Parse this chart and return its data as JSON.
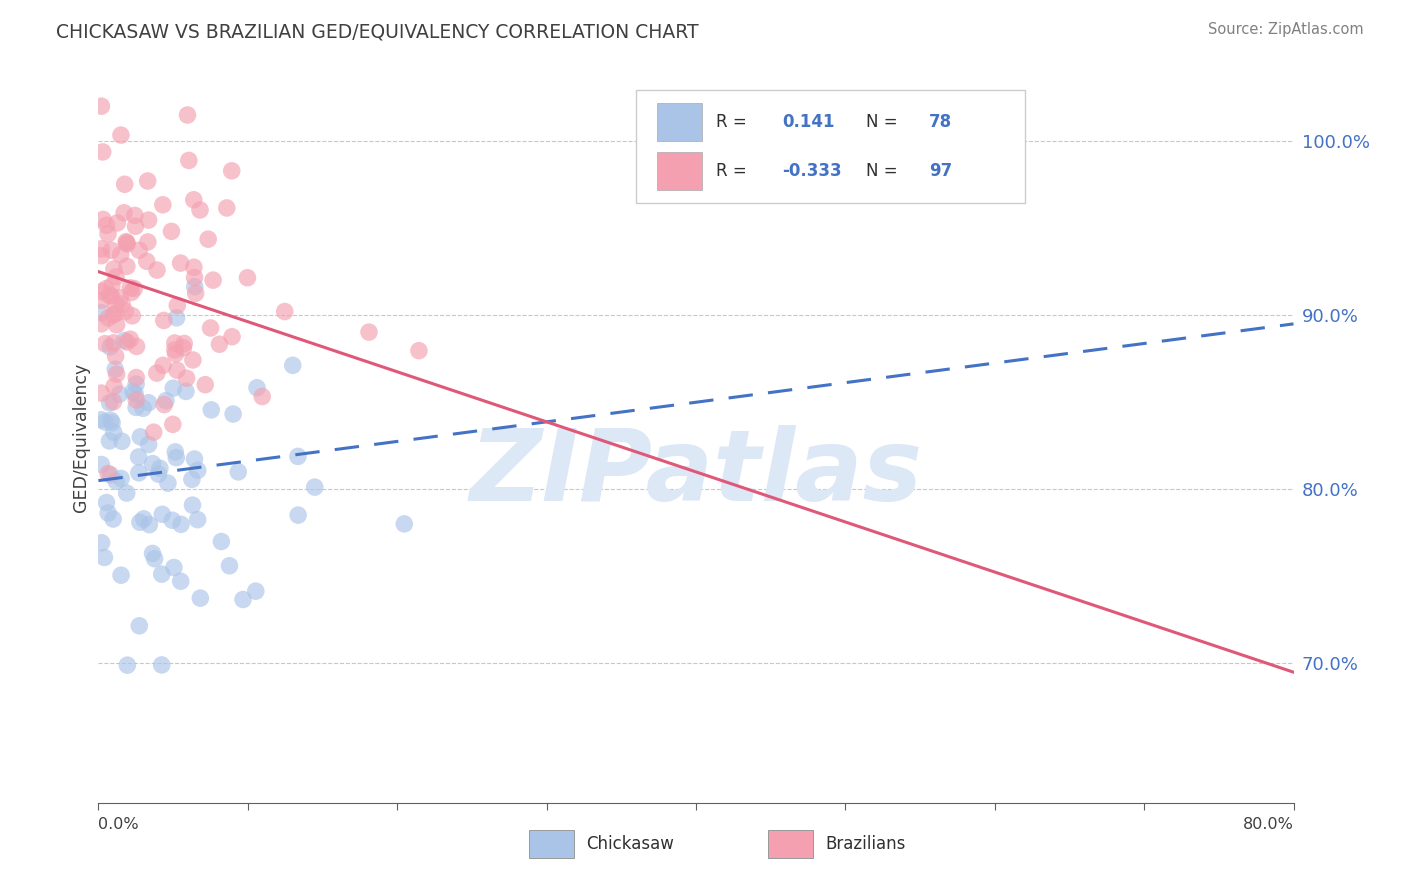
{
  "title": "CHICKASAW VS BRAZILIAN GED/EQUIVALENCY CORRELATION CHART",
  "source": "Source: ZipAtlas.com",
  "ylabel": "GED/Equivalency",
  "ytick_labels": [
    "70.0%",
    "80.0%",
    "90.0%",
    "100.0%"
  ],
  "ytick_values": [
    0.7,
    0.8,
    0.9,
    1.0
  ],
  "xlim": [
    0.0,
    0.8
  ],
  "ylim": [
    0.62,
    1.04
  ],
  "chickasaw_R": 0.141,
  "chickasaw_N": 78,
  "brazilians_R": -0.333,
  "brazilians_N": 97,
  "chickasaw_color": "#aac4e8",
  "brazilians_color": "#f4a0b0",
  "chickasaw_line_color": "#4472c4",
  "brazilians_line_color": "#e05878",
  "legend_text_color": "#4472c4",
  "title_color": "#404040",
  "source_color": "#808080",
  "background_color": "#ffffff",
  "watermark_color": "#dce8f5",
  "grid_color": "#c8c8c8",
  "chickasaw_trend_x": [
    0.0,
    0.8
  ],
  "chickasaw_trend_y": [
    0.805,
    0.895
  ],
  "brazilians_trend_x": [
    0.0,
    0.8
  ],
  "brazilians_trend_y": [
    0.925,
    0.695
  ],
  "xtick_positions": [
    0.0,
    0.1,
    0.2,
    0.3,
    0.4,
    0.5,
    0.6,
    0.7,
    0.8
  ]
}
